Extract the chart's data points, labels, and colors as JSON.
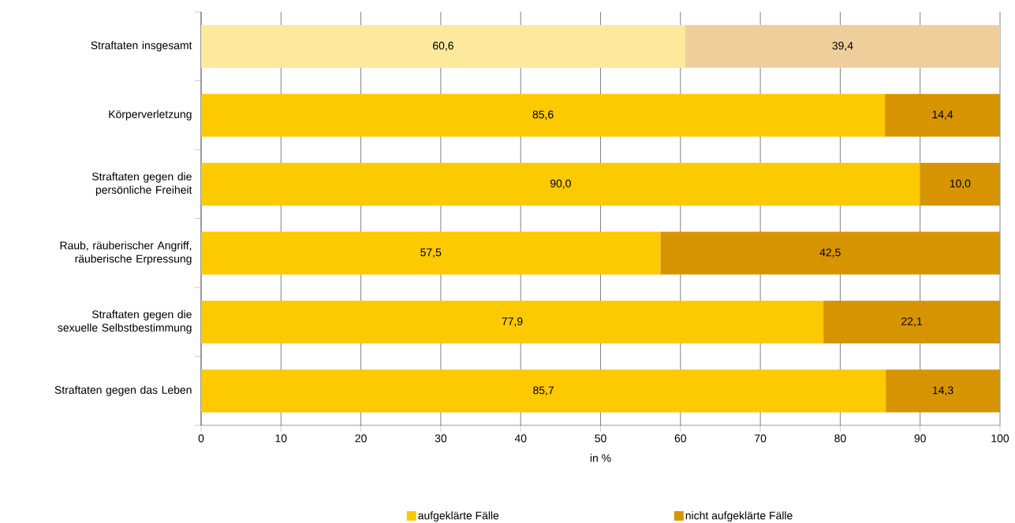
{
  "chart_data": {
    "type": "bar",
    "orientation": "horizontal",
    "stacked": true,
    "categories": [
      "Straftaten insgesamt",
      "Körperverletzung",
      "Straftaten gegen die persönliche Freiheit",
      "Raub, räuberischer Angriff, räuberische Erpressung",
      "Straftaten gegen die sexuelle Selbstbestimmung",
      "Straftaten gegen das Leben"
    ],
    "series": [
      {
        "name": "aufgeklärte Fälle",
        "color": "#fdc900",
        "colors": [
          "#fde99b",
          "#fdc900",
          "#fdc900",
          "#fdc900",
          "#fdc900",
          "#fdc900"
        ],
        "values": [
          60.6,
          85.6,
          90.0,
          57.5,
          77.9,
          85.7
        ],
        "value_labels": [
          "60,6",
          "85,6",
          "90,0",
          "57,5",
          "77,9",
          "85,7"
        ]
      },
      {
        "name": "nicht aufgeklärte Fälle",
        "color": "#d69500",
        "colors": [
          "#eecf9c",
          "#d69500",
          "#d69500",
          "#d69500",
          "#d69500",
          "#d69500"
        ],
        "values": [
          39.4,
          14.4,
          10.0,
          42.5,
          22.1,
          14.3
        ],
        "value_labels": [
          "39,4",
          "14,4",
          "10,0",
          "42,5",
          "22,1",
          "14,3"
        ]
      }
    ],
    "xlabel": "in %",
    "xlim": [
      0,
      100
    ],
    "xticks": [
      0,
      10,
      20,
      30,
      40,
      50,
      60,
      70,
      80,
      90,
      100
    ],
    "grid": "x",
    "legend": "bottom"
  }
}
